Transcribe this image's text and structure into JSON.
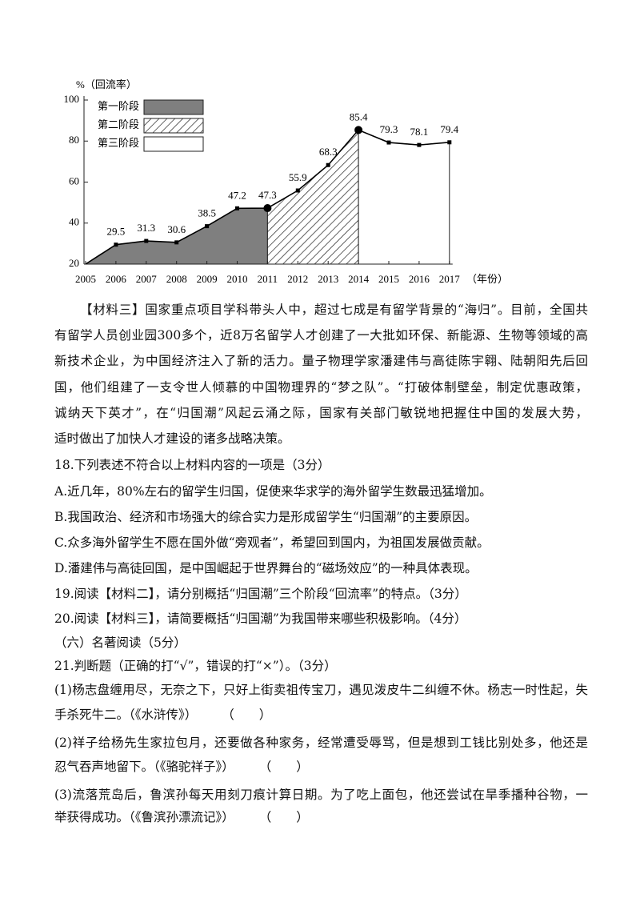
{
  "chart_data": {
    "type": "line",
    "y_label": "%（回流率）",
    "x_label": "（年份）",
    "categories": [
      "2005",
      "2006",
      "2007",
      "2008",
      "2009",
      "2010",
      "2011",
      "2012",
      "2013",
      "2014",
      "2015",
      "2016",
      "2017"
    ],
    "values": [
      20,
      29.5,
      31.3,
      30.6,
      38.5,
      47.2,
      47.3,
      55.9,
      68.3,
      85.4,
      79.3,
      78.1,
      79.4
    ],
    "value_labels": [
      null,
      "29.5",
      "31.3",
      "30.6",
      "38.5",
      "47.2",
      "47.3",
      "55.9",
      "68.3",
      "85.4",
      "79.3",
      "78.1",
      "79.4"
    ],
    "color": "#000000",
    "ylim": [
      20,
      100
    ],
    "yticks": [
      20,
      40,
      60,
      80,
      100
    ],
    "legend": "top-left",
    "stages": [
      {
        "name": "第一阶段",
        "color": "#7f7f7f",
        "pattern": "solid",
        "from": "2005",
        "to": "2011"
      },
      {
        "name": "第二阶段",
        "color": "#ffffff",
        "pattern": "hatch",
        "from": "2011",
        "to": "2014"
      },
      {
        "name": "第三阶段",
        "color": "#ffffff",
        "pattern": "solid",
        "from": "2014",
        "to": "2017"
      }
    ]
  },
  "document": {
    "lines": [
      "【材料三】国家重点项目学科带头人中，超过七成是有留学背景的“海归”。目前，全国共",
      "有留学人员创业园300多个，近8万名留学人才创建了一大批如环保、新能源、生物等领域的高",
      "新技术企业，为中国经济注入了新的活力。量子物理学家潘建伟与高徒陈宇翱、陆朝阳先后回",
      "国，他们组建了一支令世人倾慕的中国物理界的“梦之队”。“打破体制壁垒，制定优惠政策，",
      "诚纳天下英才”，在“归国潮”风起云涌之际，国家有关部门敏锐地把握住中国的发展大势，",
      "适时做出了加快人才建设的诸多战略决策。",
      "18.下列表述不符合以上材料内容的一项是（3分）",
      "A.近几年，80%左右的留学生归国，促使来华求学的海外留学生数最迅猛增加。",
      "B.我国政治、经济和市场强大的综合实力是形成留学生“归国潮”的主要原因。",
      "C.众多海外留学生不愿在国外做“旁观者”，希望回到国内，为祖国发展做贡献。",
      "D.潘建伟与高徒回国，是中国崛起于世界舞台的“磁场效应”的一种具体表现。",
      "19.阅读【材料二】，请分别概括“归国潮”三个阶段“回流率”的特点。（3分）",
      "20.阅读【材料三】，请简要概括“归国潮”为我国带来哪些积极影响。（4分）",
      "（六）名著阅读（5分）",
      "21.判断题（正确的打“√”，错误的打“×”）。（3分）",
      "(1)杨志盘缠用尽，无奈之下，只好上街卖祖传宝刀，遇见泼皮牛二纠缠不休。杨志一时性起，失",
      "手杀死牛二。（《水浒传》）　　　（　　）",
      "(2)祥子给杨先生家拉包月，还要做各种家务，经常遭受辱骂，但是想到工钱比别处多，他还是",
      "忍气吞声地留下。（《骆驼祥子》）　　　（　　）",
      "(3)流落荒岛后，鲁滨孙每天用刻刀痕计算日期。为了吃上面包，他还尝试在旱季播种谷物，一",
      "举获得成功。（《鲁滨孙漂流记》）　　　（　　）"
    ]
  }
}
